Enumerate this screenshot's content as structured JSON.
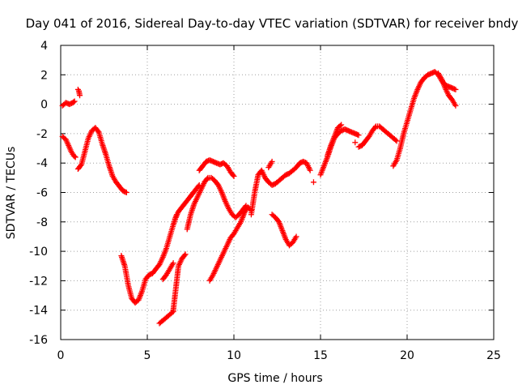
{
  "chart_data": {
    "type": "scatter",
    "title": "Day 041 of 2016, Sidereal Day-to-day VTEC variation (SDTVAR) for receiver bndy",
    "xlabel": "GPS time / hours",
    "ylabel": "SDTVAR / TECUs",
    "xlim": [
      0,
      25
    ],
    "ylim": [
      -16,
      4
    ],
    "xticks": [
      "0",
      "5",
      "10",
      "15",
      "20",
      "25"
    ],
    "yticks": [
      "4",
      "2",
      "0",
      "-2",
      "-4",
      "-6",
      "-8",
      "-10",
      "-12",
      "-14",
      "-16"
    ],
    "grid": true,
    "marker": "+",
    "color": "#ff0000",
    "segments": [
      {
        "x": [
          0.1,
          0.3,
          0.5,
          0.7,
          0.8
        ],
        "y": [
          -0.1,
          0.1,
          0.0,
          0.1,
          0.2
        ]
      },
      {
        "x": [
          1.0,
          1.05,
          1.1
        ],
        "y": [
          1.0,
          0.9,
          0.6
        ]
      },
      {
        "x": [
          0.1,
          0.3,
          0.45,
          0.6,
          0.75,
          0.85
        ],
        "y": [
          -2.2,
          -2.4,
          -2.8,
          -3.2,
          -3.5,
          -3.6
        ]
      },
      {
        "x": [
          1.0,
          1.2,
          1.4,
          1.6,
          1.8,
          2.0,
          2.2,
          2.4,
          2.6,
          2.8,
          3.0,
          3.2,
          3.4,
          3.6,
          3.8
        ],
        "y": [
          -4.4,
          -4.1,
          -3.2,
          -2.3,
          -1.8,
          -1.6,
          -1.9,
          -2.7,
          -3.4,
          -4.2,
          -4.9,
          -5.3,
          -5.6,
          -5.9,
          -6.0
        ]
      },
      {
        "x": [
          3.5,
          3.7,
          3.9,
          4.1,
          4.3,
          4.5,
          4.7,
          4.9,
          5.1,
          5.3,
          5.5,
          5.7,
          5.9,
          6.1,
          6.3,
          6.5,
          6.7
        ],
        "y": [
          -10.3,
          -11.0,
          -12.3,
          -13.2,
          -13.5,
          -13.3,
          -12.7,
          -11.9,
          -11.6,
          -11.5,
          -11.2,
          -10.9,
          -10.4,
          -9.8,
          -9.0,
          -8.2,
          -7.5
        ]
      },
      {
        "x": [
          5.7,
          5.9,
          6.1,
          6.3,
          6.5
        ],
        "y": [
          -14.9,
          -14.7,
          -14.5,
          -14.3,
          -14.1
        ]
      },
      {
        "x": [
          5.9,
          6.1,
          6.3,
          6.5
        ],
        "y": [
          -11.9,
          -11.6,
          -11.2,
          -10.8
        ]
      },
      {
        "x": [
          6.5,
          6.6,
          6.7,
          6.8,
          7.0,
          7.2
        ],
        "y": [
          -14.0,
          -13.0,
          -12.0,
          -11.0,
          -10.5,
          -10.2
        ]
      },
      {
        "x": [
          6.6,
          6.8,
          7.0,
          7.2,
          7.4,
          7.6,
          7.8,
          8.0
        ],
        "y": [
          -7.8,
          -7.3,
          -7.0,
          -6.7,
          -6.4,
          -6.1,
          -5.8,
          -5.5
        ]
      },
      {
        "x": [
          7.3,
          7.5,
          7.7,
          7.9,
          8.1,
          8.3,
          8.5,
          8.7,
          8.9,
          9.1,
          9.3,
          9.5,
          9.7,
          9.9,
          10.1,
          10.3,
          10.5,
          10.7
        ],
        "y": [
          -8.5,
          -7.5,
          -6.8,
          -6.3,
          -5.8,
          -5.3,
          -5.0,
          -5.0,
          -5.2,
          -5.5,
          -6.0,
          -6.6,
          -7.1,
          -7.5,
          -7.7,
          -7.5,
          -7.2,
          -6.9
        ]
      },
      {
        "x": [
          8.0,
          8.2,
          8.4,
          8.6,
          8.8,
          9.0,
          9.2,
          9.4,
          9.6,
          9.8,
          10.0
        ],
        "y": [
          -4.5,
          -4.2,
          -3.9,
          -3.8,
          -3.9,
          -4.0,
          -4.1,
          -4.0,
          -4.2,
          -4.6,
          -4.9
        ]
      },
      {
        "x": [
          8.6,
          8.8,
          9.0,
          9.2,
          9.4,
          9.6,
          9.8,
          10.0,
          10.2,
          10.4,
          10.6,
          10.8,
          11.0
        ],
        "y": [
          -12.0,
          -11.6,
          -11.1,
          -10.6,
          -10.1,
          -9.6,
          -9.1,
          -8.8,
          -8.4,
          -8.0,
          -7.4,
          -7.0,
          -7.2
        ]
      },
      {
        "x": [
          11.0,
          11.2,
          11.4,
          11.6,
          11.8,
          12.0,
          12.2,
          12.4,
          12.6,
          12.8,
          13.0,
          13.2,
          13.4,
          13.6,
          13.8,
          14.0,
          14.2,
          14.4
        ],
        "y": [
          -7.5,
          -6.0,
          -4.8,
          -4.5,
          -5.0,
          -5.3,
          -5.5,
          -5.4,
          -5.2,
          -5.0,
          -4.8,
          -4.7,
          -4.5,
          -4.3,
          -4.0,
          -3.9,
          -4.0,
          -4.5
        ]
      },
      {
        "x": [
          12.0,
          12.2
        ],
        "y": [
          -4.3,
          -3.9
        ]
      },
      {
        "x": [
          14.6
        ],
        "y": [
          -5.3
        ]
      },
      {
        "x": [
          12.2,
          12.4,
          12.6,
          12.8,
          13.0,
          13.2,
          13.4,
          13.6
        ],
        "y": [
          -7.5,
          -7.7,
          -8.0,
          -8.6,
          -9.2,
          -9.6,
          -9.4,
          -9.0
        ]
      },
      {
        "x": [
          15.0,
          15.2,
          15.4,
          15.6,
          15.8,
          16.0,
          16.2,
          16.4,
          16.6,
          16.8,
          17.0,
          17.2
        ],
        "y": [
          -4.8,
          -4.2,
          -3.6,
          -2.9,
          -2.3,
          -2.0,
          -1.8,
          -1.7,
          -1.8,
          -1.9,
          -2.0,
          -2.1
        ]
      },
      {
        "x": [
          15.4,
          15.6,
          15.8,
          16.0,
          16.2
        ],
        "y": [
          -3.5,
          -2.8,
          -2.2,
          -1.6,
          -1.4
        ]
      },
      {
        "x": [
          17.0
        ],
        "y": [
          -2.6
        ]
      },
      {
        "x": [
          17.2,
          17.4,
          17.6,
          17.8,
          18.0,
          18.2,
          18.4,
          18.6,
          18.8,
          19.0,
          19.2,
          19.4
        ],
        "y": [
          -2.9,
          -2.8,
          -2.5,
          -2.2,
          -1.8,
          -1.5,
          -1.5,
          -1.7,
          -1.9,
          -2.1,
          -2.3,
          -2.5
        ]
      },
      {
        "x": [
          19.2,
          19.4,
          19.6,
          19.8,
          20.0,
          20.2,
          20.4,
          20.6,
          20.8,
          21.0,
          21.2,
          21.4,
          21.6,
          21.8,
          22.0,
          22.2,
          22.4,
          22.6,
          22.8
        ],
        "y": [
          -4.2,
          -3.8,
          -3.0,
          -2.0,
          -1.2,
          -0.4,
          0.4,
          1.0,
          1.5,
          1.8,
          2.0,
          2.1,
          2.2,
          2.0,
          1.6,
          1.3,
          1.2,
          1.1,
          1.0
        ]
      },
      {
        "x": [
          21.8,
          22.0,
          22.2,
          22.4,
          22.6,
          22.8
        ],
        "y": [
          2.1,
          1.7,
          1.1,
          0.6,
          0.3,
          -0.1
        ]
      }
    ]
  }
}
